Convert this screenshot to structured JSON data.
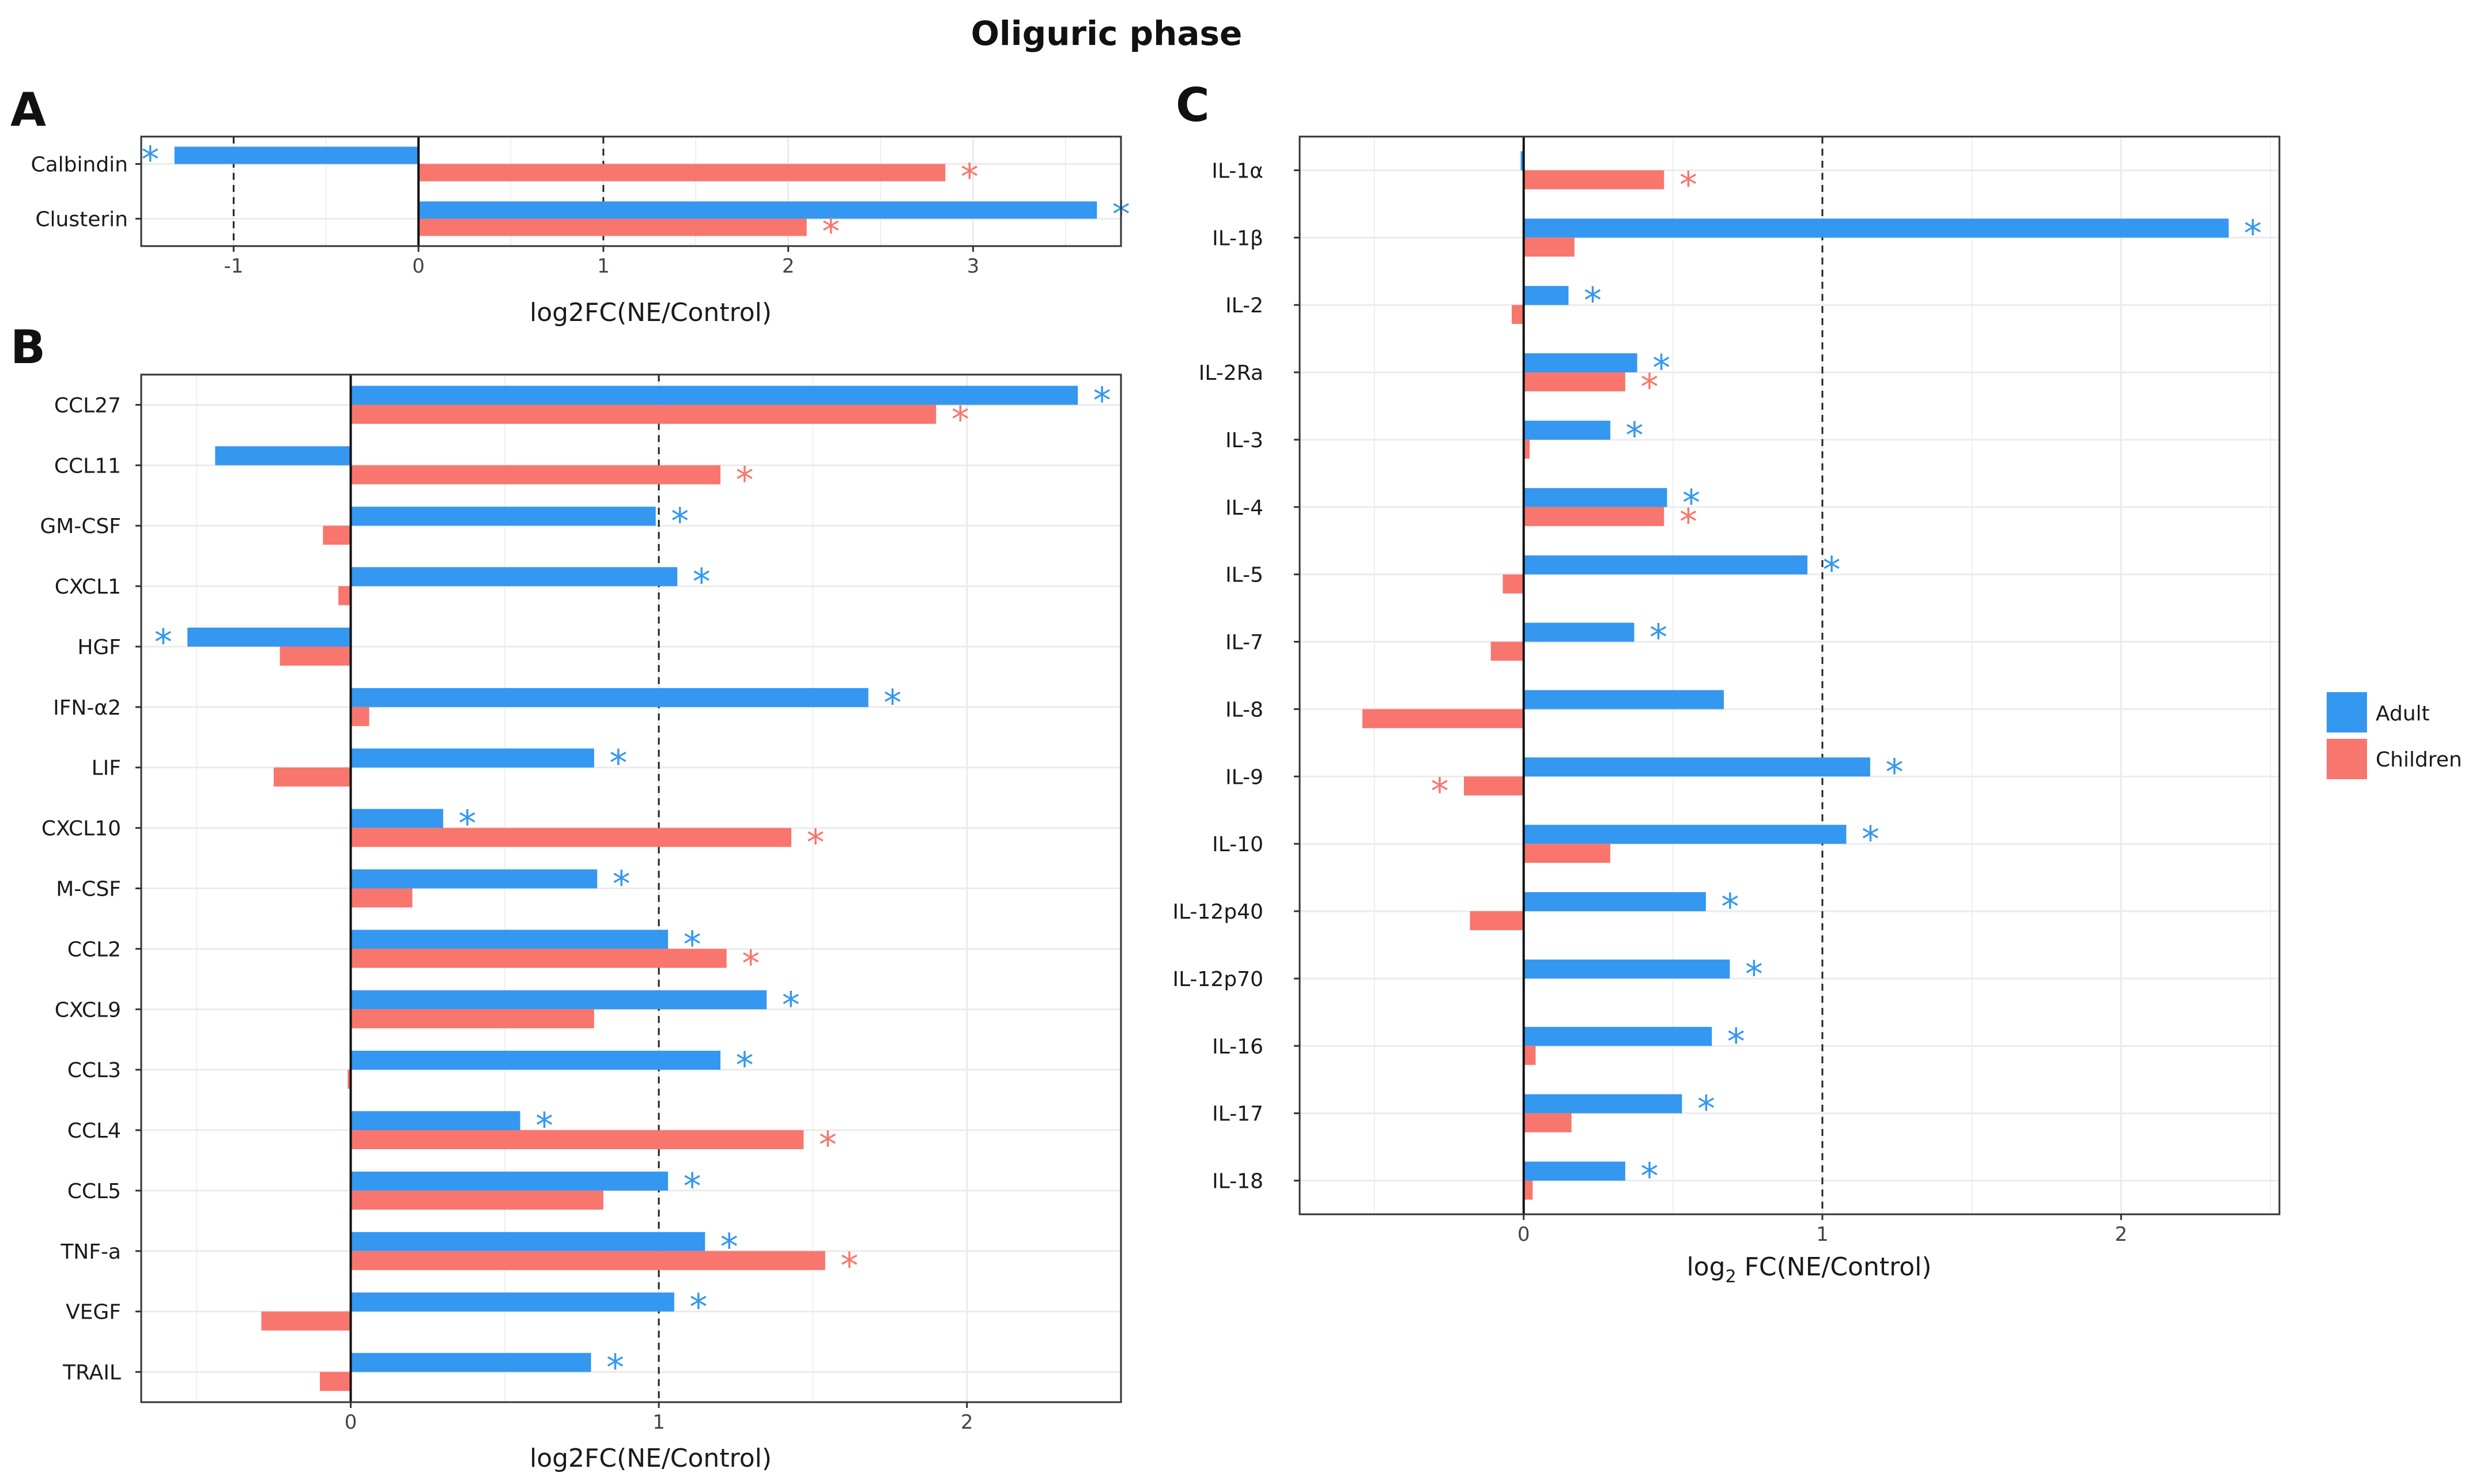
{
  "figure_title": "Oliguric phase",
  "colors": {
    "adult": "#3497f0",
    "children": "#f8766d",
    "grid": "#ebebeb",
    "axis": "#333333",
    "text": "#1a1a1a"
  },
  "legend": {
    "adult": "Adult",
    "children": "Children"
  },
  "chart_data": [
    {
      "panel": "A",
      "type": "bar",
      "orientation": "horizontal",
      "xlabel": "log2FC(NE/Control)",
      "xlim": [
        -1.5,
        3.8
      ],
      "xticks": [
        -1,
        0,
        1,
        2,
        3
      ],
      "dashed_lines": [
        -1,
        1
      ],
      "categories": [
        "Calbindin",
        "Clusterin"
      ],
      "series": [
        {
          "name": "Adult",
          "values": [
            -1.32,
            3.67
          ],
          "significant": [
            true,
            true
          ]
        },
        {
          "name": "Children",
          "values": [
            2.85,
            2.1
          ],
          "significant": [
            true,
            true
          ]
        }
      ]
    },
    {
      "panel": "B",
      "type": "bar",
      "orientation": "horizontal",
      "xlabel": "log2FC(NE/Control)",
      "xlim": [
        -0.68,
        2.5
      ],
      "xticks": [
        0,
        1,
        2
      ],
      "dashed_lines": [
        1
      ],
      "categories": [
        "CCL27",
        "CCL11",
        "GM-CSF",
        "CXCL1",
        "HGF",
        "IFN-α2",
        "LIF",
        "CXCL10",
        "M-CSF",
        "CCL2",
        "CXCL9",
        "CCL3",
        "CCL4",
        "CCL5",
        "TNF-a",
        "VEGF",
        "TRAIL"
      ],
      "series": [
        {
          "name": "Adult",
          "values": [
            2.36,
            -0.44,
            0.99,
            1.06,
            -0.53,
            1.68,
            0.79,
            0.3,
            0.8,
            1.03,
            1.35,
            1.2,
            0.55,
            1.03,
            1.15,
            1.05,
            0.78
          ],
          "significant": [
            true,
            false,
            true,
            true,
            true,
            true,
            true,
            true,
            true,
            true,
            true,
            true,
            true,
            true,
            true,
            true,
            true
          ]
        },
        {
          "name": "Children",
          "values": [
            1.9,
            1.2,
            -0.09,
            -0.04,
            -0.23,
            0.06,
            -0.25,
            1.43,
            0.2,
            1.22,
            0.79,
            -0.01,
            1.47,
            0.82,
            1.54,
            -0.29,
            -0.1
          ],
          "significant": [
            true,
            true,
            false,
            false,
            false,
            false,
            false,
            true,
            false,
            true,
            false,
            false,
            true,
            false,
            true,
            false,
            false
          ]
        }
      ]
    },
    {
      "panel": "C",
      "type": "bar",
      "orientation": "horizontal",
      "xlabel_main": "log",
      "xlabel_sub": "2",
      "xlabel_rest": " FC(NE/Control)",
      "xlim": [
        -0.75,
        2.53
      ],
      "xticks": [
        0,
        1,
        2
      ],
      "dashed_lines": [
        1
      ],
      "categories": [
        "IL-1α",
        "IL-1β",
        "IL-2",
        "IL-2Ra",
        "IL-3",
        "IL-4",
        "IL-5",
        "IL-7",
        "IL-8",
        "IL-9",
        "IL-10",
        "IL-12p40",
        "IL-12p70",
        "IL-16",
        "IL-17",
        "IL-18"
      ],
      "series": [
        {
          "name": "Adult",
          "values": [
            -0.01,
            2.36,
            0.15,
            0.38,
            0.29,
            0.48,
            0.95,
            0.37,
            0.67,
            1.16,
            1.08,
            0.61,
            0.69,
            0.63,
            0.53,
            0.34
          ],
          "significant": [
            false,
            true,
            true,
            true,
            true,
            true,
            true,
            true,
            false,
            true,
            true,
            true,
            true,
            true,
            true,
            true
          ]
        },
        {
          "name": "Children",
          "values": [
            0.47,
            0.17,
            -0.04,
            0.34,
            0.02,
            0.47,
            -0.07,
            -0.11,
            -0.54,
            -0.2,
            0.29,
            -0.18,
            0.0,
            0.04,
            0.16,
            0.03
          ],
          "significant": [
            true,
            false,
            false,
            true,
            false,
            true,
            false,
            false,
            false,
            true,
            false,
            false,
            false,
            false,
            false,
            false
          ]
        }
      ]
    }
  ]
}
